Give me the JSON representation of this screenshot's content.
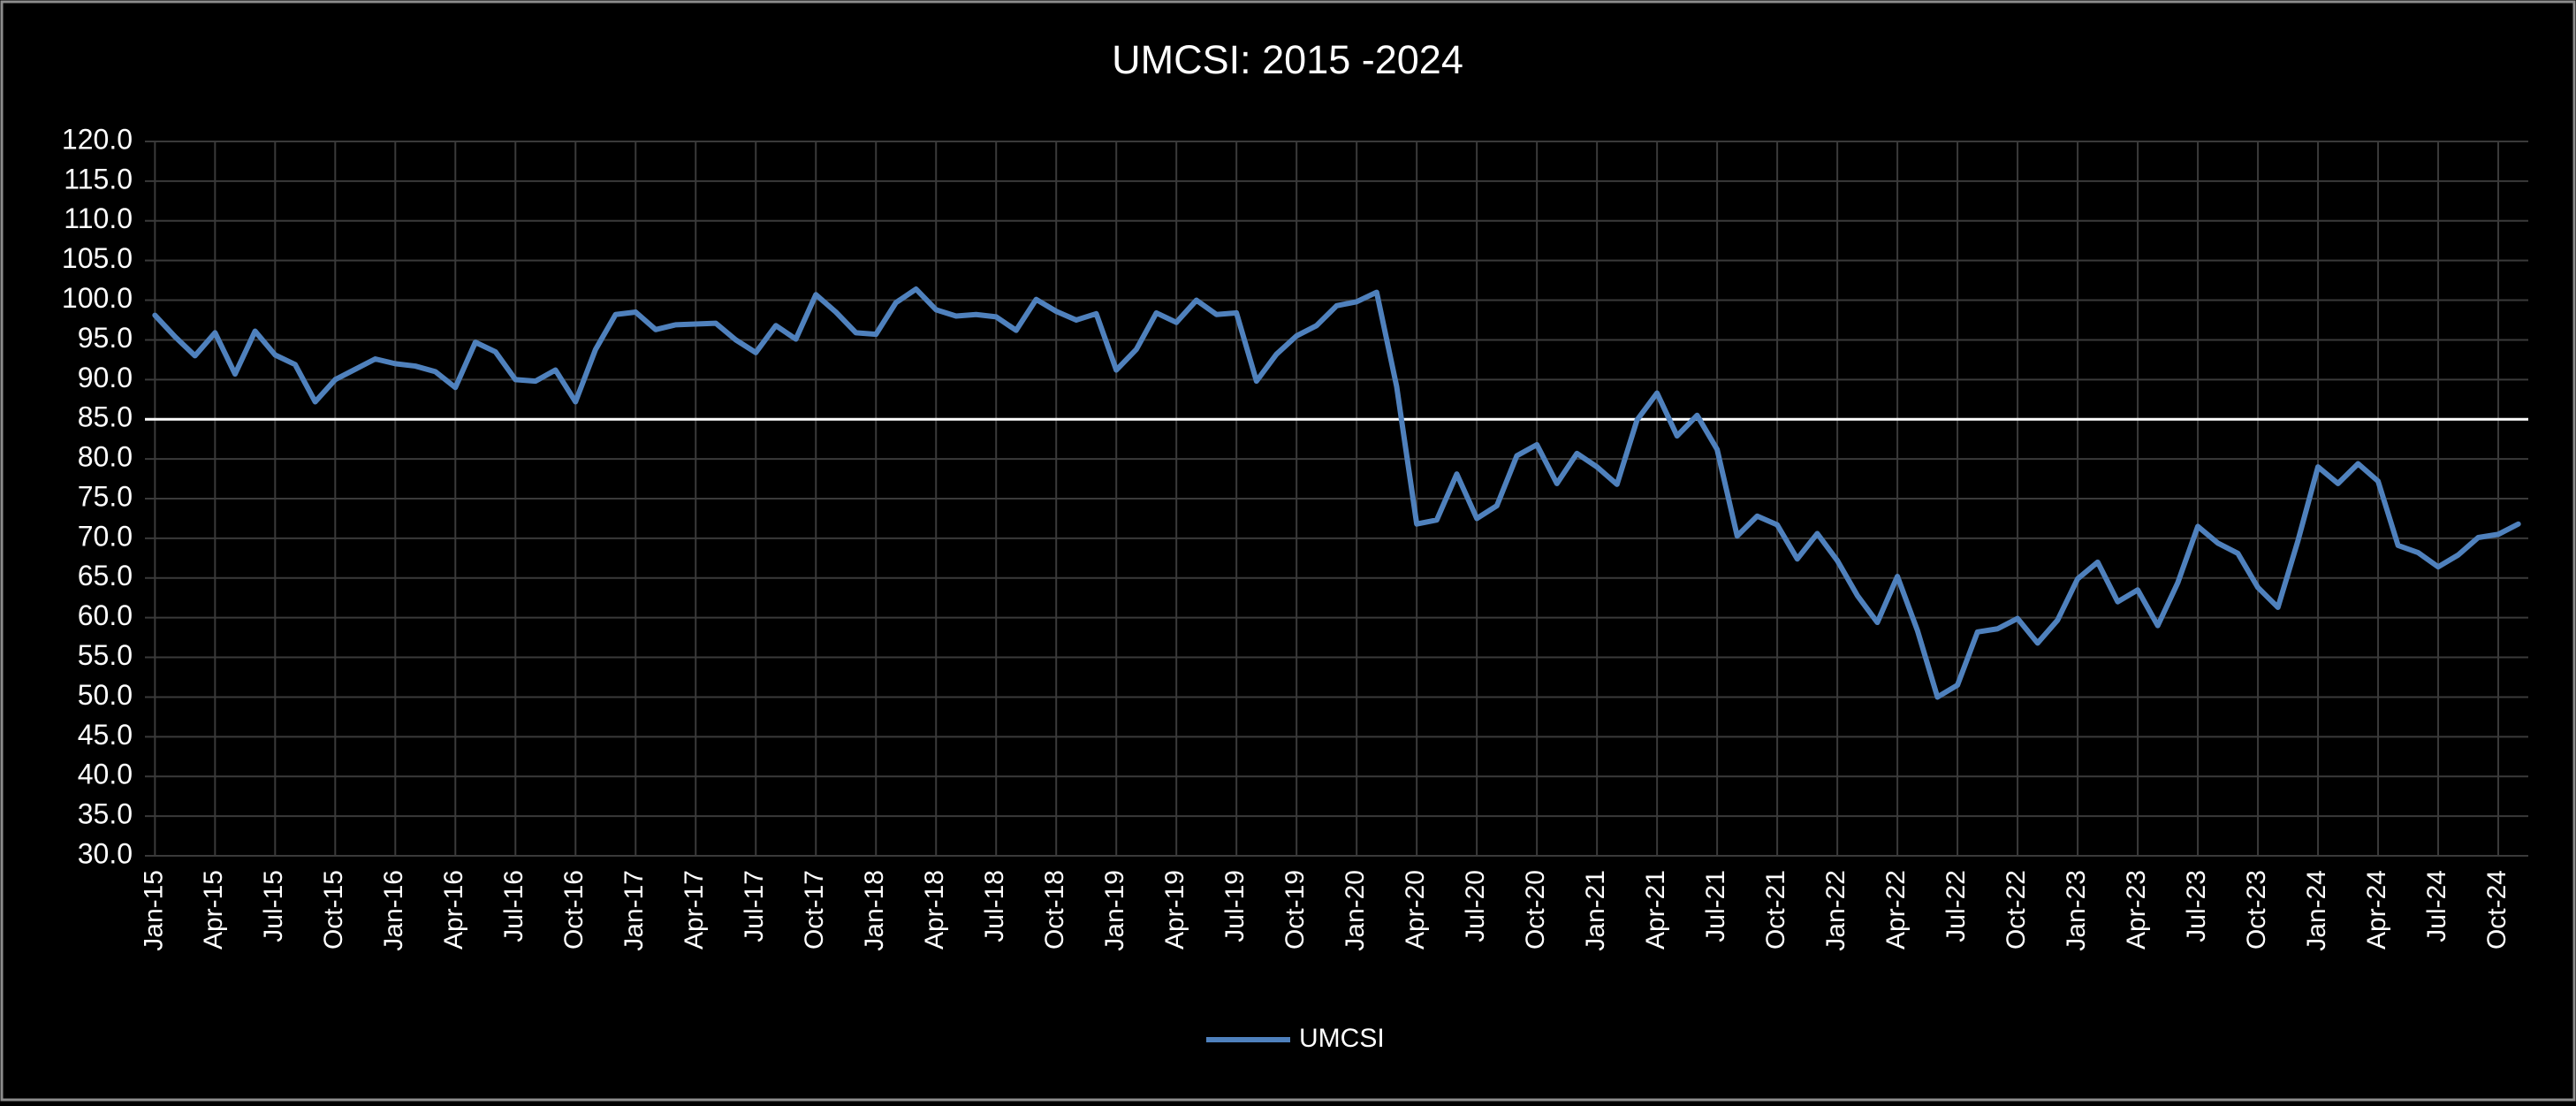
{
  "chart_data": {
    "type": "line",
    "title": "UMCSI: 2015 -2024",
    "categories": [
      "Jan-15",
      null,
      null,
      "Apr-15",
      null,
      null,
      "Jul-15",
      null,
      null,
      "Oct-15",
      null,
      null,
      "Jan-16",
      null,
      null,
      "Apr-16",
      null,
      null,
      "Jul-16",
      null,
      null,
      "Oct-16",
      null,
      null,
      "Jan-17",
      null,
      null,
      "Apr-17",
      null,
      null,
      "Jul-17",
      null,
      null,
      "Oct-17",
      null,
      null,
      "Jan-18",
      null,
      null,
      "Apr-18",
      null,
      null,
      "Jul-18",
      null,
      null,
      "Oct-18",
      null,
      null,
      "Jan-19",
      null,
      null,
      "Apr-19",
      null,
      null,
      "Jul-19",
      null,
      null,
      "Oct-19",
      null,
      null,
      "Jan-20",
      null,
      null,
      "Apr-20",
      null,
      null,
      "Jul-20",
      null,
      null,
      "Oct-20",
      null,
      null,
      "Jan-21",
      null,
      null,
      "Apr-21",
      null,
      null,
      "Jul-21",
      null,
      null,
      "Oct-21",
      null,
      null,
      "Jan-22",
      null,
      null,
      "Apr-22",
      null,
      null,
      "Jul-22",
      null,
      null,
      "Oct-22",
      null,
      null,
      "Jan-23",
      null,
      null,
      "Apr-23",
      null,
      null,
      "Jul-23",
      null,
      null,
      "Oct-23",
      null,
      null,
      "Jan-24",
      null,
      null,
      "Apr-24",
      null,
      null,
      "Jul-24",
      null,
      null,
      "Oct-24",
      null
    ],
    "series": [
      {
        "name": "UMCSI",
        "color": "#4f81bd",
        "values": [
          98.1,
          95.4,
          93.0,
          95.9,
          90.7,
          96.1,
          93.1,
          91.9,
          87.2,
          90.0,
          91.3,
          92.6,
          92.0,
          91.7,
          91.0,
          89.0,
          94.7,
          93.5,
          90.0,
          89.8,
          91.2,
          87.2,
          93.8,
          98.2,
          98.5,
          96.3,
          96.9,
          97.0,
          97.1,
          95.0,
          93.4,
          96.8,
          95.1,
          100.7,
          98.5,
          95.9,
          95.7,
          99.7,
          101.4,
          98.8,
          98.0,
          98.2,
          97.9,
          96.2,
          100.1,
          98.6,
          97.5,
          98.3,
          91.2,
          93.8,
          98.4,
          97.2,
          100.0,
          98.2,
          98.4,
          89.8,
          93.2,
          95.5,
          96.8,
          99.3,
          99.8,
          101.0,
          89.1,
          71.8,
          72.3,
          78.1,
          72.5,
          74.1,
          80.4,
          81.8,
          76.9,
          80.7,
          79.0,
          76.8,
          84.9,
          88.3,
          82.9,
          85.5,
          81.2,
          70.3,
          72.8,
          71.7,
          67.4,
          70.6,
          67.2,
          62.8,
          59.4,
          65.2,
          58.4,
          50.0,
          51.5,
          58.2,
          58.6,
          59.9,
          56.8,
          59.7,
          64.9,
          67.0,
          62.0,
          63.5,
          59.0,
          64.4,
          71.5,
          69.4,
          68.1,
          63.8,
          61.3,
          69.7,
          79.0,
          76.9,
          79.4,
          77.2,
          69.1,
          68.2,
          66.4,
          67.9,
          70.1,
          70.5,
          71.8
        ]
      }
    ],
    "reference_line": 85,
    "ylim": [
      30,
      120
    ],
    "yticks": [
      {
        "value": 30,
        "label": "30.0"
      },
      {
        "value": 35,
        "label": "35.0"
      },
      {
        "value": 40,
        "label": "40.0"
      },
      {
        "value": 45,
        "label": "45.0"
      },
      {
        "value": 50,
        "label": "50.0"
      },
      {
        "value": 55,
        "label": "55.0"
      },
      {
        "value": 60,
        "label": "60.0"
      },
      {
        "value": 65,
        "label": "65.0"
      },
      {
        "value": 70,
        "label": "70.0"
      },
      {
        "value": 75,
        "label": "75.0"
      },
      {
        "value": 80,
        "label": "80.0"
      },
      {
        "value": 85,
        "label": "85.0"
      },
      {
        "value": 90,
        "label": "90.0"
      },
      {
        "value": 95,
        "label": "95.0"
      },
      {
        "value": 100,
        "label": "100.0"
      },
      {
        "value": 105,
        "label": "105.0"
      },
      {
        "value": 110,
        "label": "110.0"
      },
      {
        "value": 115,
        "label": "115.0"
      },
      {
        "value": 120,
        "label": "120.0"
      }
    ],
    "grid": true,
    "legend": "bottom"
  }
}
